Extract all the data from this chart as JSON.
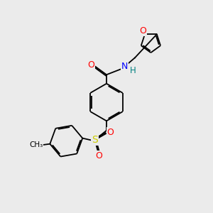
{
  "background_color": "#ebebeb",
  "bond_color": "#000000",
  "atom_colors": {
    "O": "#ff0000",
    "N": "#0000ff",
    "S": "#cccc00",
    "H": "#008080",
    "C": "#000000"
  },
  "lw": 1.3,
  "dbo": 0.055
}
